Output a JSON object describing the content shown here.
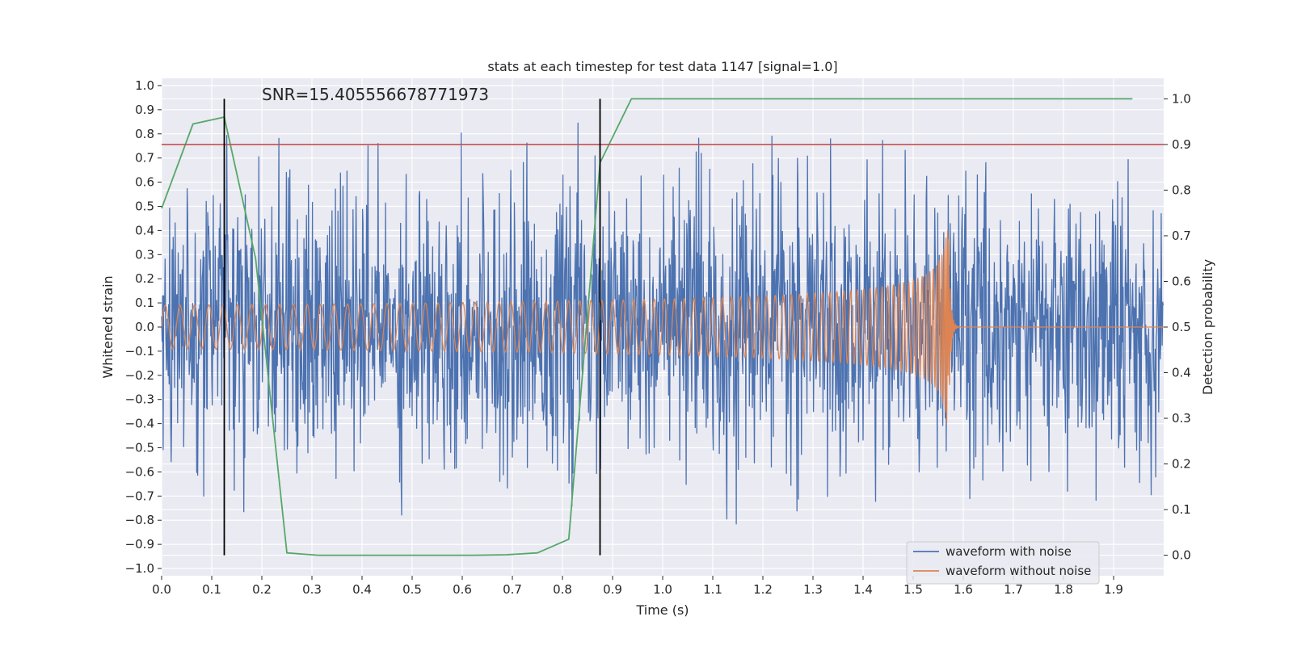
{
  "chart_data": {
    "type": "line",
    "title": "stats at each timestep for test data 1147 [signal=1.0]",
    "xlabel": "Time (s)",
    "ylabel": "Whitened strain",
    "y2label": "Detection probability",
    "annotation": "SNR=15.405556678771973",
    "xlim": [
      0.0,
      2.0
    ],
    "ylim": [
      -1.03,
      1.03
    ],
    "y2lim": [
      -0.045,
      1.045
    ],
    "x_ticks": [
      "0.0",
      "0.1",
      "0.2",
      "0.3",
      "0.4",
      "0.5",
      "0.6",
      "0.7",
      "0.8",
      "0.9",
      "1.0",
      "1.1",
      "1.2",
      "1.3",
      "1.4",
      "1.5",
      "1.6",
      "1.7",
      "1.8",
      "1.9"
    ],
    "y_ticks": [
      "1.0",
      "0.9",
      "0.8",
      "0.7",
      "0.6",
      "0.5",
      "0.4",
      "0.3",
      "0.2",
      "0.1",
      "0.0",
      "−0.1",
      "−0.2",
      "−0.3",
      "−0.4",
      "−0.5",
      "−0.6",
      "−0.7",
      "−0.8",
      "−0.9",
      "−1.0"
    ],
    "y2_ticks": [
      "1.0",
      "0.9",
      "0.8",
      "0.7",
      "0.6",
      "0.5",
      "0.4",
      "0.3",
      "0.2",
      "0.1",
      "0.0"
    ],
    "grid": true,
    "legend_placement": "lower-right",
    "series": [
      {
        "name": "waveform with noise",
        "color": "#4c72b0",
        "description": "noisy whitened strain, amplitude up to about ±1.0 across 0–2 s"
      },
      {
        "name": "waveform without noise",
        "color": "#dd8452",
        "chirp_start_amplitude": 0.09,
        "chirp_peak_time": 1.57,
        "chirp_peak_amplitude": 0.58,
        "chirp_end_amplitude": -0.4
      },
      {
        "color": "#55a868",
        "axis": "right",
        "x": [
          0.0,
          0.0625,
          0.125,
          0.1875,
          0.25,
          0.3125,
          0.375,
          0.4375,
          0.5,
          0.5625,
          0.625,
          0.6875,
          0.75,
          0.8125,
          0.875,
          0.9375,
          1.0,
          1.0625,
          1.125,
          1.1875,
          1.25,
          1.3125,
          1.375,
          1.4375,
          1.5,
          1.5625,
          1.625,
          1.6875,
          1.75,
          1.8125,
          1.875,
          1.9375
        ],
        "values": [
          0.76,
          0.945,
          0.96,
          0.65,
          0.005,
          0.0,
          0.0,
          0.0,
          0.0,
          0.0,
          0.0,
          0.001,
          0.005,
          0.035,
          0.86,
          1.0,
          1.0,
          1.0,
          1.0,
          1.0,
          1.0,
          1.0,
          1.0,
          1.0,
          1.0,
          1.0,
          1.0,
          1.0,
          1.0,
          1.0,
          1.0,
          1.0
        ]
      }
    ],
    "threshold": {
      "axis": "right",
      "value": 0.9,
      "color": "#c44e52"
    },
    "markers": {
      "x": [
        0.125,
        0.875
      ],
      "color": "#000000"
    }
  }
}
